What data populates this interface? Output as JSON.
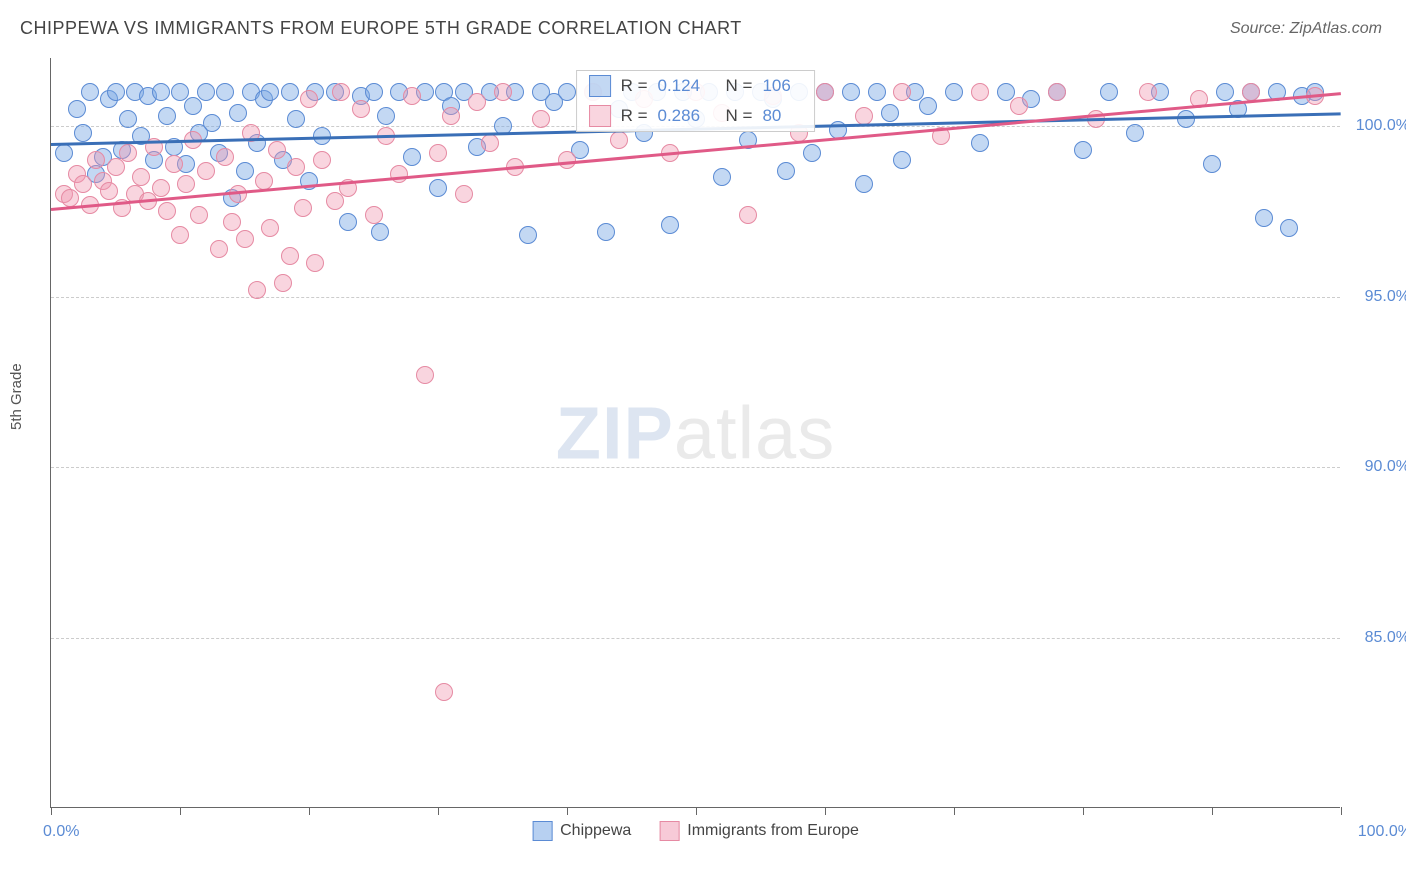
{
  "title": "CHIPPEWA VS IMMIGRANTS FROM EUROPE 5TH GRADE CORRELATION CHART",
  "source": "Source: ZipAtlas.com",
  "ylabel": "5th Grade",
  "watermark_part1": "ZIP",
  "watermark_part2": "atlas",
  "chart": {
    "type": "scatter",
    "background_color": "#ffffff",
    "grid_color": "#cccccc",
    "axis_color": "#666666",
    "label_color": "#5b8bd4",
    "text_color": "#444444",
    "xlim": [
      0,
      100
    ],
    "ylim": [
      80,
      102
    ],
    "xtick_positions": [
      0,
      10,
      20,
      30,
      40,
      50,
      60,
      70,
      80,
      90,
      100
    ],
    "x_axis_labels": {
      "min": "0.0%",
      "max": "100.0%"
    },
    "yticks": [
      {
        "v": 85,
        "label": "85.0%"
      },
      {
        "v": 90,
        "label": "90.0%"
      },
      {
        "v": 95,
        "label": "95.0%"
      },
      {
        "v": 100,
        "label": "100.0%"
      }
    ],
    "point_radius": 9,
    "point_border_width": 1.5,
    "series": [
      {
        "name": "Chippewa",
        "fill": "rgba(123,169,229,0.45)",
        "stroke": "#5b8bd4",
        "R": "0.124",
        "N": "106",
        "trend": {
          "x1": 0,
          "y1": 99.5,
          "x2": 100,
          "y2": 100.4,
          "color": "#3a6fb7",
          "width": 2.5
        },
        "points": [
          [
            1,
            99.2
          ],
          [
            2,
            100.5
          ],
          [
            2.5,
            99.8
          ],
          [
            3,
            101
          ],
          [
            3.5,
            98.6
          ],
          [
            4,
            99.1
          ],
          [
            4.5,
            100.8
          ],
          [
            5,
            101
          ],
          [
            5.5,
            99.3
          ],
          [
            6,
            100.2
          ],
          [
            6.5,
            101
          ],
          [
            7,
            99.7
          ],
          [
            7.5,
            100.9
          ],
          [
            8,
            99.0
          ],
          [
            8.5,
            101
          ],
          [
            9,
            100.3
          ],
          [
            9.5,
            99.4
          ],
          [
            10,
            101
          ],
          [
            10.5,
            98.9
          ],
          [
            11,
            100.6
          ],
          [
            11.5,
            99.8
          ],
          [
            12,
            101
          ],
          [
            12.5,
            100.1
          ],
          [
            13,
            99.2
          ],
          [
            13.5,
            101
          ],
          [
            14,
            97.9
          ],
          [
            14.5,
            100.4
          ],
          [
            15,
            98.7
          ],
          [
            15.5,
            101
          ],
          [
            16,
            99.5
          ],
          [
            16.5,
            100.8
          ],
          [
            17,
            101
          ],
          [
            18,
            99.0
          ],
          [
            18.5,
            101
          ],
          [
            19,
            100.2
          ],
          [
            20,
            98.4
          ],
          [
            20.5,
            101
          ],
          [
            21,
            99.7
          ],
          [
            22,
            101
          ],
          [
            23,
            97.2
          ],
          [
            24,
            100.9
          ],
          [
            25,
            101
          ],
          [
            25.5,
            96.9
          ],
          [
            26,
            100.3
          ],
          [
            27,
            101
          ],
          [
            28,
            99.1
          ],
          [
            29,
            101
          ],
          [
            30,
            98.2
          ],
          [
            30.5,
            101
          ],
          [
            31,
            100.6
          ],
          [
            32,
            101
          ],
          [
            33,
            99.4
          ],
          [
            34,
            101
          ],
          [
            35,
            100.0
          ],
          [
            36,
            101
          ],
          [
            37,
            96.8
          ],
          [
            38,
            101
          ],
          [
            39,
            100.7
          ],
          [
            40,
            101
          ],
          [
            41,
            99.3
          ],
          [
            42,
            101
          ],
          [
            43,
            96.9
          ],
          [
            44,
            100.5
          ],
          [
            45,
            101
          ],
          [
            46,
            99.8
          ],
          [
            47,
            101
          ],
          [
            48,
            97.1
          ],
          [
            49,
            101
          ],
          [
            50,
            100.2
          ],
          [
            51,
            101
          ],
          [
            52,
            98.5
          ],
          [
            53,
            101
          ],
          [
            54,
            99.6
          ],
          [
            55,
            101
          ],
          [
            56,
            100.8
          ],
          [
            57,
            98.7
          ],
          [
            58,
            101
          ],
          [
            59,
            99.2
          ],
          [
            60,
            101
          ],
          [
            61,
            99.9
          ],
          [
            62,
            101
          ],
          [
            63,
            98.3
          ],
          [
            64,
            101
          ],
          [
            65,
            100.4
          ],
          [
            66,
            99.0
          ],
          [
            67,
            101
          ],
          [
            68,
            100.6
          ],
          [
            70,
            101
          ],
          [
            72,
            99.5
          ],
          [
            74,
            101
          ],
          [
            76,
            100.8
          ],
          [
            78,
            101
          ],
          [
            80,
            99.3
          ],
          [
            82,
            101
          ],
          [
            84,
            99.8
          ],
          [
            86,
            101
          ],
          [
            88,
            100.2
          ],
          [
            90,
            98.9
          ],
          [
            91,
            101
          ],
          [
            92,
            100.5
          ],
          [
            93,
            101
          ],
          [
            94,
            97.3
          ],
          [
            95,
            101
          ],
          [
            96,
            97.0
          ],
          [
            97,
            100.9
          ],
          [
            98,
            101
          ]
        ]
      },
      {
        "name": "Immigrants from Europe",
        "fill": "rgba(240,150,175,0.40)",
        "stroke": "#e68aa3",
        "R": "0.286",
        "N": "80",
        "trend": {
          "x1": 0,
          "y1": 97.6,
          "x2": 100,
          "y2": 101,
          "color": "#e05a87",
          "width": 2.5
        },
        "points": [
          [
            1,
            98.0
          ],
          [
            1.5,
            97.9
          ],
          [
            2,
            98.6
          ],
          [
            2.5,
            98.3
          ],
          [
            3,
            97.7
          ],
          [
            3.5,
            99.0
          ],
          [
            4,
            98.4
          ],
          [
            4.5,
            98.1
          ],
          [
            5,
            98.8
          ],
          [
            5.5,
            97.6
          ],
          [
            6,
            99.2
          ],
          [
            6.5,
            98.0
          ],
          [
            7,
            98.5
          ],
          [
            7.5,
            97.8
          ],
          [
            8,
            99.4
          ],
          [
            8.5,
            98.2
          ],
          [
            9,
            97.5
          ],
          [
            9.5,
            98.9
          ],
          [
            10,
            96.8
          ],
          [
            10.5,
            98.3
          ],
          [
            11,
            99.6
          ],
          [
            11.5,
            97.4
          ],
          [
            12,
            98.7
          ],
          [
            13,
            96.4
          ],
          [
            13.5,
            99.1
          ],
          [
            14,
            97.2
          ],
          [
            14.5,
            98.0
          ],
          [
            15,
            96.7
          ],
          [
            15.5,
            99.8
          ],
          [
            16,
            95.2
          ],
          [
            16.5,
            98.4
          ],
          [
            17,
            97.0
          ],
          [
            17.5,
            99.3
          ],
          [
            18,
            95.4
          ],
          [
            18.5,
            96.2
          ],
          [
            19,
            98.8
          ],
          [
            19.5,
            97.6
          ],
          [
            20,
            100.8
          ],
          [
            20.5,
            96.0
          ],
          [
            21,
            99.0
          ],
          [
            22,
            97.8
          ],
          [
            22.5,
            101
          ],
          [
            23,
            98.2
          ],
          [
            24,
            100.5
          ],
          [
            25,
            97.4
          ],
          [
            26,
            99.7
          ],
          [
            27,
            98.6
          ],
          [
            28,
            100.9
          ],
          [
            29,
            92.7
          ],
          [
            30,
            99.2
          ],
          [
            30.5,
            83.4
          ],
          [
            31,
            100.3
          ],
          [
            32,
            98.0
          ],
          [
            33,
            100.7
          ],
          [
            34,
            99.5
          ],
          [
            35,
            101
          ],
          [
            36,
            98.8
          ],
          [
            38,
            100.2
          ],
          [
            40,
            99.0
          ],
          [
            42,
            101
          ],
          [
            44,
            99.6
          ],
          [
            46,
            100.8
          ],
          [
            48,
            99.2
          ],
          [
            50,
            101
          ],
          [
            52,
            100.4
          ],
          [
            54,
            97.4
          ],
          [
            56,
            100.9
          ],
          [
            58,
            99.8
          ],
          [
            60,
            101
          ],
          [
            63,
            100.3
          ],
          [
            66,
            101
          ],
          [
            69,
            99.7
          ],
          [
            72,
            101
          ],
          [
            75,
            100.6
          ],
          [
            78,
            101
          ],
          [
            81,
            100.2
          ],
          [
            85,
            101
          ],
          [
            89,
            100.8
          ],
          [
            93,
            101
          ],
          [
            98,
            100.9
          ]
        ]
      }
    ],
    "legend": {
      "position": "bottom-center",
      "items": [
        {
          "label": "Chippewa",
          "fill": "rgba(123,169,229,0.55)",
          "stroke": "#5b8bd4"
        },
        {
          "label": "Immigrants from Europe",
          "fill": "rgba(240,150,175,0.50)",
          "stroke": "#e68aa3"
        }
      ]
    }
  }
}
